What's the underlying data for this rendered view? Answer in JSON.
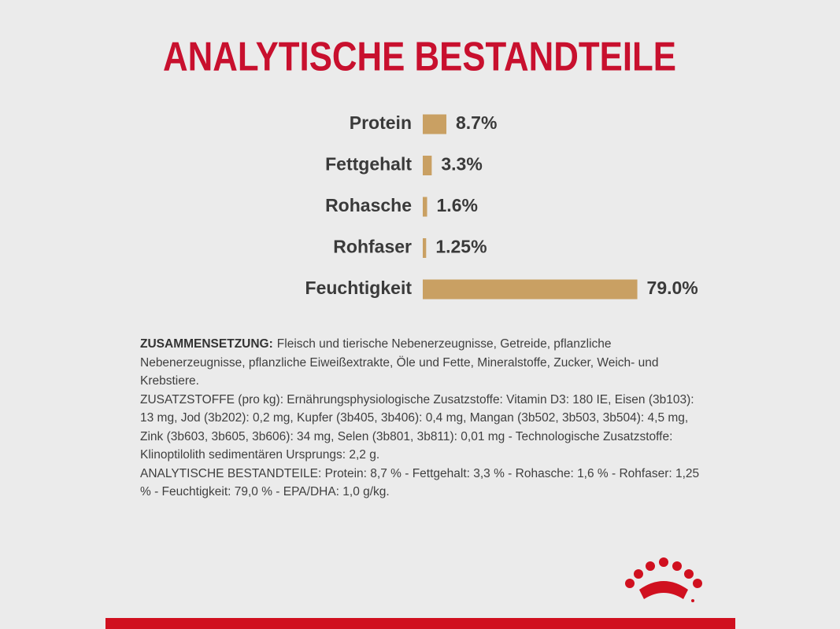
{
  "chart_data": {
    "type": "bar",
    "orientation": "horizontal",
    "title": "ANALYTISCHE BESTANDTEILE",
    "categories": [
      "Protein",
      "Fettgehalt",
      "Rohasche",
      "Rohfaser",
      "Feuchtigkeit"
    ],
    "values": [
      8.7,
      3.3,
      1.6,
      1.25,
      79.0
    ],
    "value_labels": [
      "8.7%",
      "3.3%",
      "1.6%",
      "1.25%",
      "79.0%"
    ],
    "color": "#c9a063",
    "title_color": "#c8102e"
  },
  "composition": {
    "label": "ZUSAMMENSETZUNG:",
    "text": "Fleisch und tierische Nebenerzeugnisse, Getreide, pflanzliche Nebenerzeugnisse, pflanzliche Eiweißextrakte, Öle und Fette, Mineralstoffe, Zucker, Weich- und Krebstiere.",
    "additives": "ZUSATZSTOFFE (pro kg): Ernährungsphysiologische Zusatzstoffe: Vitamin D3: 180 IE, Eisen (3b103): 13 mg, Jod (3b202): 0,2 mg, Kupfer (3b405, 3b406): 0,4 mg, Mangan (3b502, 3b503, 3b504): 4,5 mg, Zink (3b603, 3b605, 3b606): 34 mg, Selen (3b801, 3b811): 0,01 mg - Technologische Zusatzstoffe: Klinoptilolith sedimentären Ursprungs: 2,2 g.",
    "analysis": "ANALYTISCHE BESTANDTEILE: Protein: 8,7 % - Fettgehalt: 3,3 % - Rohasche: 1,6 % - Rohfaser: 1,25 % - Feuchtigkeit: 79,0 % - EPA/DHA: 1,0 g/kg."
  }
}
